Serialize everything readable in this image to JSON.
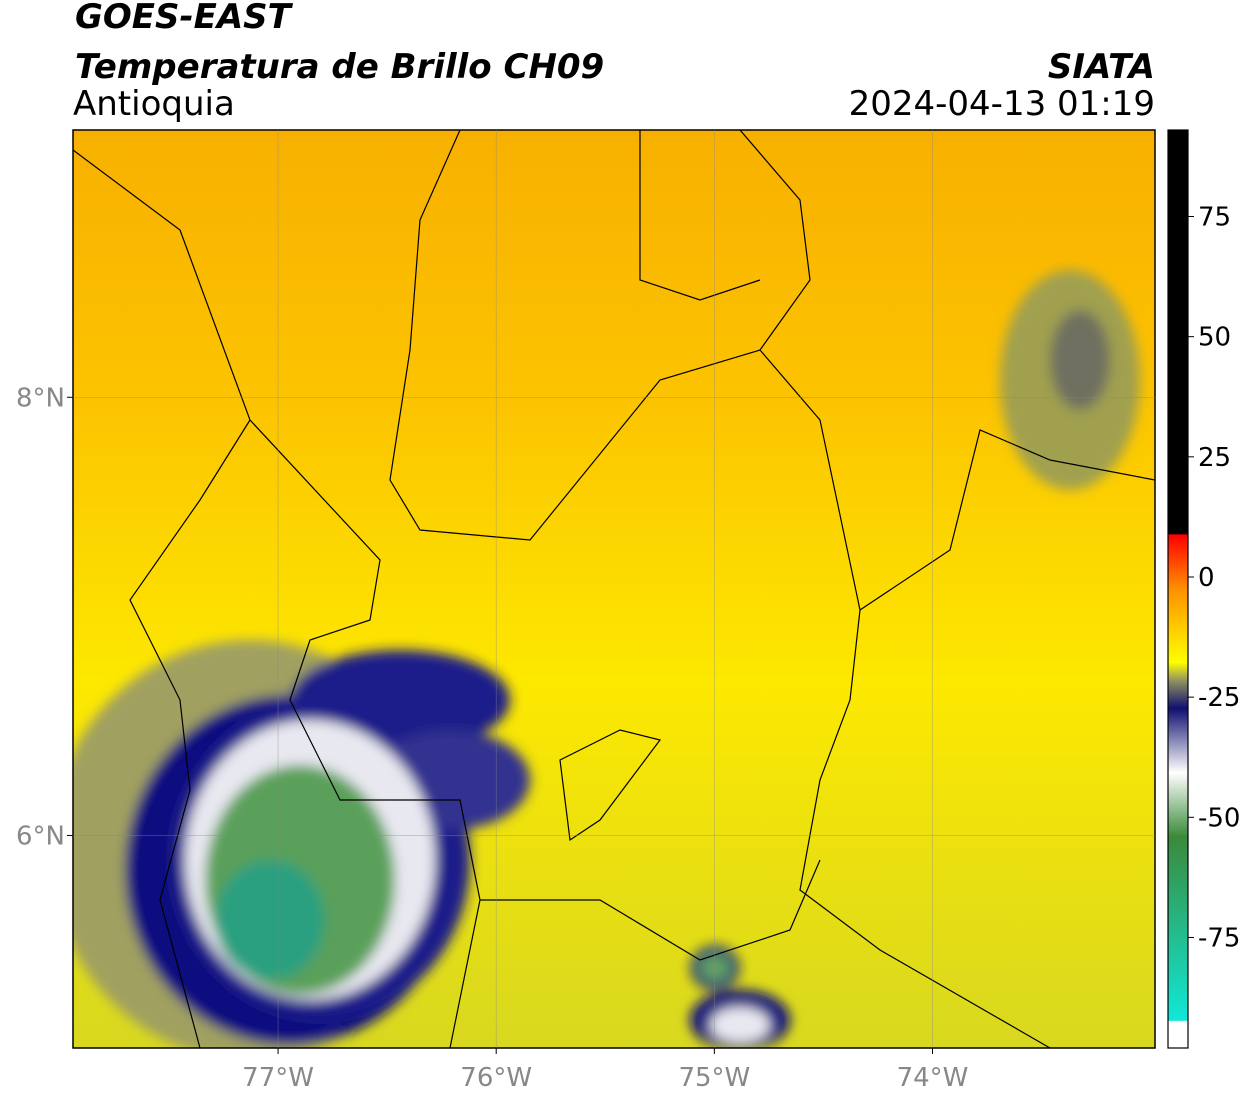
{
  "header": {
    "satellite": "GOES-EAST",
    "product": "Temperatura de Brillo CH09",
    "region": "Antioquia",
    "source": "SIATA",
    "datetime": "2024-04-13 01:19"
  },
  "map": {
    "xlim": [
      -77.94,
      -72.98
    ],
    "ylim": [
      5.03,
      9.22
    ],
    "xticks": [
      {
        "value": -77,
        "label": "77°W"
      },
      {
        "value": -76,
        "label": "76°W"
      },
      {
        "value": -75,
        "label": "75°W"
      },
      {
        "value": -74,
        "label": "74°W"
      }
    ],
    "yticks": [
      {
        "value": 6,
        "label": "6°N"
      },
      {
        "value": 8,
        "label": "8°N"
      }
    ],
    "grid": true
  },
  "colorbar": {
    "lim": [
      -98,
      93
    ],
    "ticks": [
      75,
      50,
      25,
      0,
      -25,
      -50,
      -75
    ]
  }
}
